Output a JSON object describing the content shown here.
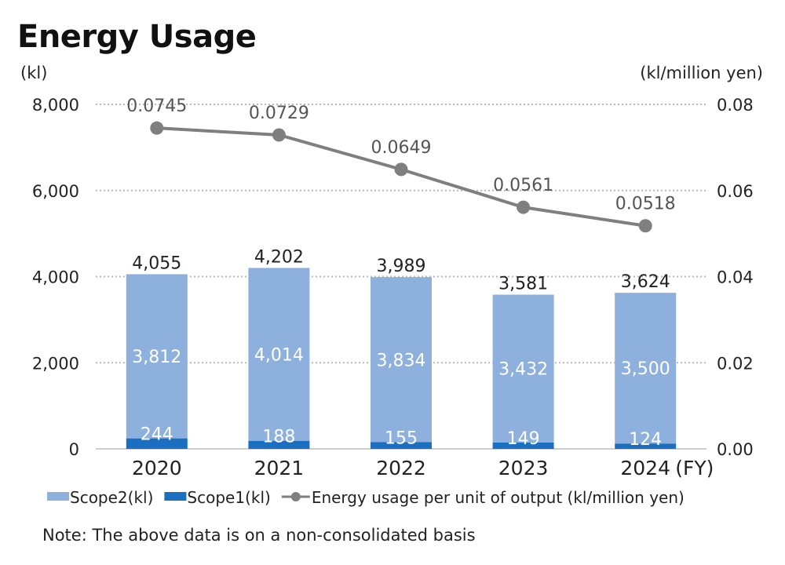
{
  "chart_data": {
    "type": "bar",
    "title": "Energy Usage",
    "categories": [
      "2020",
      "2021",
      "2022",
      "2023",
      "2024"
    ],
    "x_unit": "(FY)",
    "ylabel_left": "(kl)",
    "ylabel_right": "(kl/million yen)",
    "ylim_left": [
      0,
      8000
    ],
    "ylim_right": [
      0,
      0.08
    ],
    "yticks_left": [
      "0",
      "2,000",
      "4,000",
      "6,000",
      "8,000"
    ],
    "yticks_right": [
      "0.00",
      "0.02",
      "0.04",
      "0.06",
      "0.08"
    ],
    "grid": true,
    "stacked": true,
    "series": [
      {
        "name": "Scope1(kl)",
        "kind": "bar",
        "axis": "left",
        "color": "#1a6fc0",
        "values": [
          244,
          188,
          155,
          149,
          124
        ],
        "labels": [
          "244",
          "188",
          "155",
          "149",
          "124"
        ]
      },
      {
        "name": "Scope2(kl)",
        "kind": "bar",
        "axis": "left",
        "color": "#8db0dd",
        "values": [
          3812,
          4014,
          3834,
          3432,
          3500
        ],
        "labels": [
          "3,812",
          "4,014",
          "3,834",
          "3,432",
          "3,500"
        ]
      },
      {
        "name": "Energy usage per unit of output (kl/million yen)",
        "kind": "line",
        "axis": "right",
        "color": "#7f7f7f",
        "values": [
          0.0745,
          0.0729,
          0.0649,
          0.0561,
          0.0518
        ],
        "labels": [
          "0.0745",
          "0.0729",
          "0.0649",
          "0.0561",
          "0.0518"
        ]
      }
    ],
    "totals": [
      4055,
      4202,
      3989,
      3581,
      3624
    ],
    "total_labels": [
      "4,055",
      "4,202",
      "3,989",
      "3,581",
      "3,624"
    ],
    "legend": [
      {
        "label": "Scope2(kl)",
        "type": "bar",
        "color": "#8db0dd"
      },
      {
        "label": "Scope1(kl)",
        "type": "bar",
        "color": "#1a6fc0"
      },
      {
        "label": "Energy usage per unit of output (kl/million yen)",
        "type": "line",
        "color": "#7f7f7f"
      }
    ],
    "legend_position": "bottom-left",
    "note": "Note: The above data is on a non-consolidated basis"
  }
}
